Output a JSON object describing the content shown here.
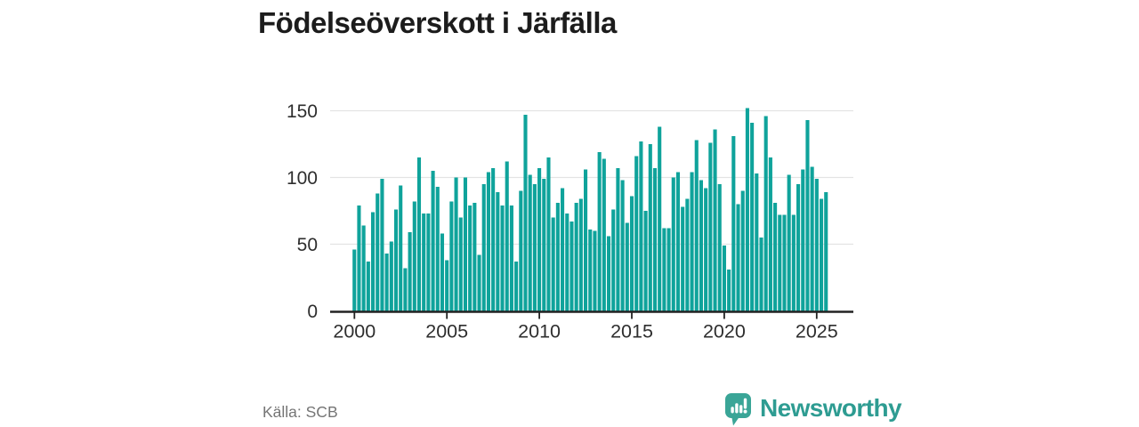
{
  "page": {
    "title": "Födelseöverskott i Järfälla"
  },
  "footer": {
    "source": "Källa: SCB",
    "brand": "Newsworthy"
  },
  "colors": {
    "bar": "#0fa39b",
    "brand_teal": "#2e9c92",
    "logo_bg": "#3aa597",
    "logo_glyph": "#ffffff",
    "title_text": "#1c1c1c",
    "axis_text": "#2e2e2e",
    "muted_text": "#757575",
    "gridline": "#e3e3e3",
    "axis_line": "#222222"
  },
  "chart_data": {
    "type": "bar",
    "title": "Födelseöverskott i Järfälla",
    "frequency": "quarterly",
    "x_start": "2000-Q1",
    "x_end": "2025-Q3",
    "x_tick_labels": [
      "2000",
      "2005",
      "2010",
      "2015",
      "2020",
      "2025"
    ],
    "y_tick_values": [
      0,
      50,
      100,
      150
    ],
    "ylim": [
      0,
      155
    ],
    "grid": "horizontal",
    "legend": "none",
    "xlabel": "",
    "ylabel": "",
    "source": "Källa: SCB",
    "series": [
      {
        "name": "Födelseöverskott",
        "values": [
          46,
          79,
          64,
          37,
          74,
          88,
          99,
          43,
          52,
          76,
          94,
          32,
          59,
          82,
          115,
          73,
          73,
          105,
          93,
          58,
          38,
          82,
          100,
          70,
          100,
          79,
          81,
          42,
          95,
          104,
          107,
          89,
          79,
          112,
          79,
          37,
          90,
          147,
          102,
          95,
          107,
          99,
          115,
          70,
          81,
          92,
          73,
          67,
          81,
          84,
          106,
          61,
          60,
          119,
          114,
          56,
          76,
          107,
          98,
          66,
          86,
          116,
          127,
          75,
          125,
          107,
          138,
          62,
          62,
          100,
          104,
          78,
          84,
          104,
          128,
          98,
          92,
          126,
          136,
          95,
          49,
          31,
          131,
          80,
          90,
          152,
          141,
          103,
          55,
          146,
          115,
          81,
          72,
          72,
          102,
          72,
          95,
          106,
          143,
          108,
          99,
          84,
          89
        ]
      }
    ]
  }
}
